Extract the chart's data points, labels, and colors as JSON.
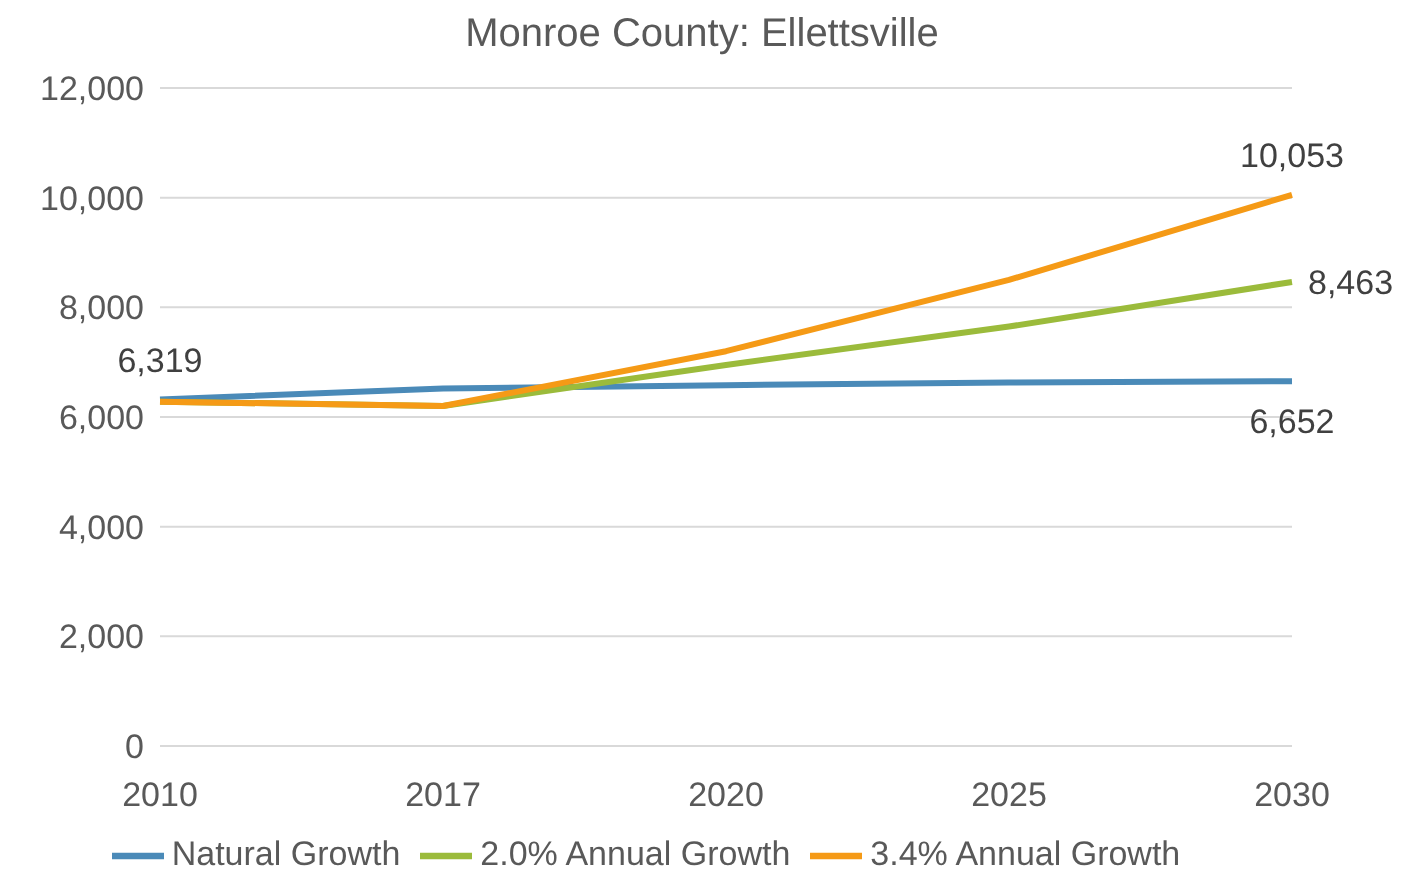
{
  "chart_data": {
    "type": "line",
    "title": "Monroe County: Ellettsville",
    "categories": [
      "2010",
      "2017",
      "2020",
      "2025",
      "2030"
    ],
    "series": [
      {
        "name": "Natural Growth",
        "color": "#4a8ab8",
        "values": [
          6319,
          6520,
          6580,
          6630,
          6652
        ],
        "value_labels": [
          "6,319",
          null,
          null,
          null,
          "6,652"
        ]
      },
      {
        "name": "2.0% Annual Growth",
        "color": "#9bbb3b",
        "values": [
          6280,
          6200,
          6950,
          7650,
          8463
        ],
        "value_labels": [
          null,
          null,
          null,
          null,
          "8,463"
        ]
      },
      {
        "name": "3.4% Annual Growth",
        "color": "#f59a16",
        "values": [
          6280,
          6200,
          7200,
          8500,
          10053
        ],
        "value_labels": [
          null,
          null,
          null,
          null,
          "10,053"
        ]
      }
    ],
    "ylim": [
      0,
      12000
    ],
    "yticks": [
      0,
      {
        "value": 2000,
        "label": "2,000"
      },
      {
        "value": 4000,
        "label": "4,000"
      },
      {
        "value": 6000,
        "label": "6,000"
      },
      {
        "value": 8000,
        "label": "8,000"
      },
      {
        "value": 10000,
        "label": "10,000"
      },
      {
        "value": 12000,
        "label": "12,000"
      }
    ],
    "grid": "y",
    "legend": "bottom",
    "marker": "none",
    "line_style": "solid"
  }
}
